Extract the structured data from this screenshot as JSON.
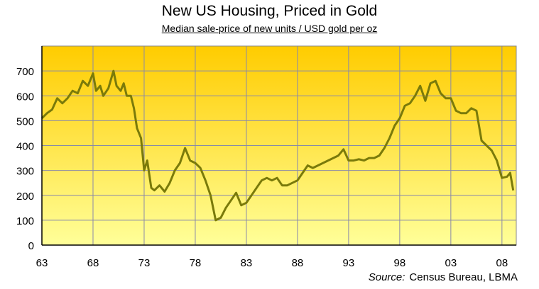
{
  "chart_data": {
    "type": "line",
    "title": "New US Housing, Priced in Gold",
    "subtitle": "Median sale-price of new units / USD gold per oz",
    "source_label": "Source:",
    "source": "Census Bureau, LBMA",
    "xlabel": "",
    "ylabel": "",
    "xlim": [
      1963,
      2009.4
    ],
    "ylim": [
      0,
      800
    ],
    "yticks": [
      0,
      100,
      200,
      300,
      400,
      500,
      600,
      700
    ],
    "xticks": [
      1963,
      1968,
      1973,
      1978,
      1983,
      1988,
      1993,
      1998,
      2003,
      2008
    ],
    "xtick_labels": [
      "63",
      "68",
      "73",
      "78",
      "83",
      "88",
      "93",
      "98",
      "03",
      "08"
    ],
    "grid": true,
    "colors": {
      "line": "#7a7a0a",
      "bg_top": "#ffcc00",
      "bg_bottom": "#ffff99",
      "grid": "#8888aa"
    },
    "series": [
      {
        "x": [
          1963,
          1963.5,
          1964,
          1964.5,
          1965,
          1965.5,
          1966,
          1966.5,
          1967,
          1967.5,
          1968,
          1968.3,
          1968.7,
          1969,
          1969.5,
          1970,
          1970.3,
          1970.7,
          1971,
          1971.3,
          1971.7,
          1972,
          1972.3,
          1972.7,
          1973,
          1973.3,
          1973.7,
          1974,
          1974.5,
          1975,
          1975.5,
          1976,
          1976.5,
          1977,
          1977.5,
          1978,
          1978.5,
          1979,
          1979.5,
          1980,
          1980.5,
          1981,
          1981.5,
          1982,
          1982.5,
          1983,
          1983.5,
          1984,
          1984.5,
          1985,
          1985.5,
          1986,
          1986.5,
          1987,
          1987.5,
          1988,
          1988.5,
          1989,
          1989.5,
          1990,
          1990.5,
          1991,
          1991.5,
          1992,
          1992.5,
          1993,
          1993.5,
          1994,
          1994.5,
          1995,
          1995.5,
          1996,
          1996.5,
          1997,
          1997.5,
          1998,
          1998.5,
          1999,
          1999.5,
          2000,
          2000.5,
          2001,
          2001.5,
          2002,
          2002.5,
          2003,
          2003.5,
          2004,
          2004.5,
          2005,
          2005.5,
          2006,
          2006.5,
          2007,
          2007.5,
          2008,
          2008.5,
          2008.8,
          2009.1
        ],
        "y": [
          510,
          530,
          545,
          590,
          570,
          590,
          620,
          610,
          660,
          640,
          690,
          620,
          640,
          600,
          630,
          700,
          640,
          620,
          650,
          600,
          600,
          550,
          470,
          430,
          300,
          340,
          230,
          220,
          240,
          215,
          250,
          300,
          330,
          390,
          340,
          330,
          310,
          260,
          200,
          100,
          110,
          150,
          180,
          210,
          160,
          170,
          200,
          230,
          260,
          270,
          260,
          270,
          240,
          240,
          250,
          260,
          290,
          320,
          310,
          320,
          330,
          340,
          350,
          360,
          385,
          340,
          340,
          345,
          340,
          350,
          350,
          360,
          390,
          430,
          480,
          510,
          560,
          570,
          600,
          640,
          580,
          650,
          660,
          610,
          590,
          590,
          540,
          530,
          530,
          550,
          540,
          420,
          400,
          380,
          340,
          270,
          275,
          290,
          220
        ]
      }
    ]
  }
}
